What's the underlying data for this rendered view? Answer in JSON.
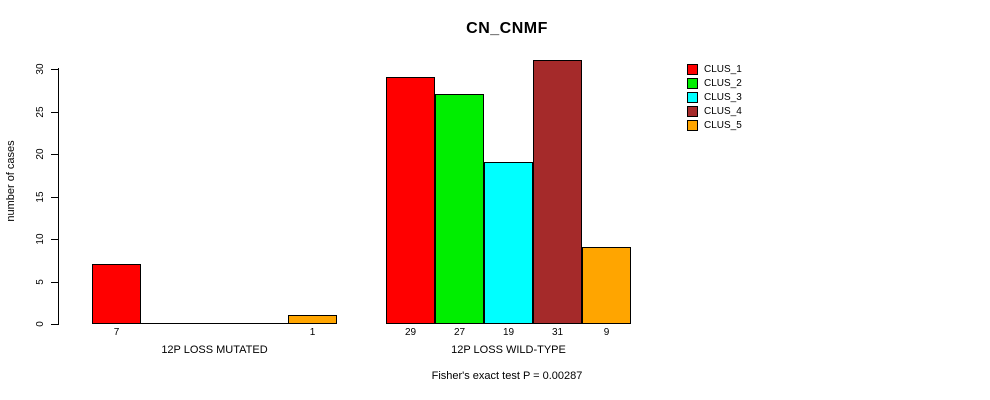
{
  "chart_data": {
    "type": "bar",
    "title": "CN_CNMF",
    "ylabel": "number of cases",
    "xlabel": "",
    "annotation": "Fisher's exact test P = 0.00287",
    "ylim": [
      0,
      31
    ],
    "yticks": [
      0,
      5,
      10,
      15,
      20,
      25,
      30
    ],
    "grid": false,
    "legend_position": "top-right",
    "categories": [
      "12P LOSS MUTATED",
      "12P LOSS WILD-TYPE"
    ],
    "series": [
      {
        "name": "CLUS_1",
        "color": "#FF0000",
        "values": [
          7,
          29
        ]
      },
      {
        "name": "CLUS_2",
        "color": "#00EE00",
        "values": [
          0,
          27
        ]
      },
      {
        "name": "CLUS_3",
        "color": "#00FFFF",
        "values": [
          0,
          19
        ]
      },
      {
        "name": "CLUS_4",
        "color": "#A52A2A",
        "values": [
          0,
          31
        ]
      },
      {
        "name": "CLUS_5",
        "color": "#FFA500",
        "values": [
          1,
          9
        ]
      }
    ],
    "bar_value_labels": [
      [
        "7",
        "",
        "",
        "",
        "1"
      ],
      [
        "29",
        "27",
        "19",
        "31",
        "9"
      ]
    ]
  }
}
